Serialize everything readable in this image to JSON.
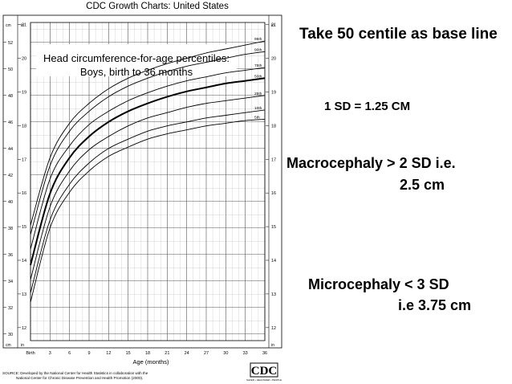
{
  "slide_notes": {
    "baseline": "Take 50 centile as base line",
    "sd": "1 SD = 1.25 CM",
    "macro_line1": "Macrocephaly  > 2 SD i.e.",
    "macro_line2": "2.5 cm",
    "micro_line1": "Microcephaly < 3 SD",
    "micro_line2": "i.e 3.75 cm"
  },
  "chart_data": {
    "type": "line",
    "header": "CDC Growth Charts: United States",
    "title_line1": "Head circumference-for-age percentiles:",
    "title_line2": "Boys, birth to 36 months",
    "xlabel": "Age (months)",
    "x_ticks": [
      "Birth",
      "3",
      "6",
      "9",
      "12",
      "15",
      "18",
      "21",
      "24",
      "27",
      "30",
      "33",
      "36"
    ],
    "xlim": [
      0,
      36
    ],
    "ylim": [
      29.5,
      53.5
    ],
    "y_unit_cm": "cm",
    "y_unit_in": "in",
    "cm_ticks": [
      30,
      32,
      34,
      36,
      38,
      40,
      42,
      44,
      46,
      48,
      50,
      52
    ],
    "cm_extra_ticks": [],
    "in_ticks": [
      12,
      13,
      14,
      15,
      16,
      17,
      18,
      19,
      20,
      21,
      22
    ],
    "x": [
      0,
      3,
      6,
      9,
      12,
      15,
      18,
      21,
      24,
      27,
      30,
      33,
      36
    ],
    "series": [
      {
        "name": "95th",
        "values": [
          38.2,
          43.3,
          45.9,
          47.4,
          48.5,
          49.3,
          49.9,
          50.4,
          50.8,
          51.2,
          51.5,
          51.8,
          52.1
        ]
      },
      {
        "name": "90th",
        "values": [
          37.5,
          42.7,
          45.3,
          46.8,
          47.9,
          48.7,
          49.3,
          49.8,
          50.2,
          50.5,
          50.8,
          51.1,
          51.3
        ]
      },
      {
        "name": "75th",
        "values": [
          36.4,
          41.7,
          44.2,
          45.8,
          46.8,
          47.6,
          48.2,
          48.7,
          49.1,
          49.4,
          49.7,
          49.9,
          50.1
        ]
      },
      {
        "name": "50th",
        "values": [
          35.2,
          40.6,
          43.3,
          44.9,
          46.0,
          46.8,
          47.4,
          47.9,
          48.3,
          48.6,
          48.9,
          49.1,
          49.3
        ]
      },
      {
        "name": "25th",
        "values": [
          34.1,
          39.6,
          42.3,
          43.9,
          44.9,
          45.7,
          46.3,
          46.7,
          47.1,
          47.4,
          47.6,
          47.8,
          48.0
        ]
      },
      {
        "name": "10th",
        "values": [
          33.1,
          38.6,
          41.3,
          42.9,
          44.0,
          44.7,
          45.3,
          45.7,
          46.0,
          46.3,
          46.5,
          46.7,
          46.9
        ]
      },
      {
        "name": "5th",
        "values": [
          32.4,
          38.0,
          40.7,
          42.3,
          43.4,
          44.1,
          44.7,
          45.1,
          45.4,
          45.7,
          45.9,
          46.1,
          46.2
        ]
      }
    ],
    "grid": true,
    "source_line1": "SOURCE: Developed by the National Center for Health Statistics in collaboration with the",
    "source_line2": "National Center for Chronic Disease Prevention and Health Promotion (2000).",
    "logo_text": "CDC",
    "logo_subtext": "SAFER • HEALTHIER • PEOPLE"
  }
}
